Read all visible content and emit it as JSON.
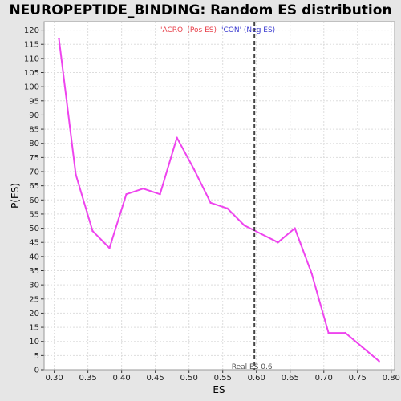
{
  "chart_data": {
    "type": "line",
    "title": "NEUROPEPTIDE_BINDING: Random ES distribution",
    "xlabel": "ES",
    "ylabel": "P(ES)",
    "xlim": [
      0.285,
      0.805
    ],
    "ylim": [
      0,
      123
    ],
    "x_ticks": [
      0.3,
      0.35,
      0.4,
      0.45,
      0.5,
      0.55,
      0.6,
      0.65,
      0.7,
      0.75,
      0.8
    ],
    "x_tick_labels": [
      "0.30",
      "0.35",
      "0.40",
      "0.45",
      "0.50",
      "0.55",
      "0.60",
      "0.65",
      "0.70",
      "0.75",
      "0.80"
    ],
    "y_ticks": [
      0,
      5,
      10,
      15,
      20,
      25,
      30,
      35,
      40,
      45,
      50,
      55,
      60,
      65,
      70,
      75,
      80,
      85,
      90,
      95,
      100,
      105,
      110,
      115,
      120
    ],
    "grid": true,
    "legend": {
      "pos_label": "'ACRO' (Pos ES)",
      "neg_label": "'CON' (Neg ES)",
      "pos_color": "#e8404a",
      "neg_color": "#3a3ad0"
    },
    "series": [
      {
        "color": "#ee44ee",
        "x": [
          0.307,
          0.332,
          0.357,
          0.382,
          0.407,
          0.432,
          0.457,
          0.482,
          0.507,
          0.532,
          0.557,
          0.582,
          0.607,
          0.632,
          0.657,
          0.682,
          0.707,
          0.732,
          0.757,
          0.782
        ],
        "y": [
          117,
          69,
          49,
          43,
          62,
          64,
          62,
          82,
          71,
          59,
          57,
          51,
          48,
          45,
          50,
          34,
          13,
          13,
          8,
          3
        ]
      }
    ],
    "real_es": {
      "value": 0.597,
      "label": "Real ES 0.6"
    }
  }
}
